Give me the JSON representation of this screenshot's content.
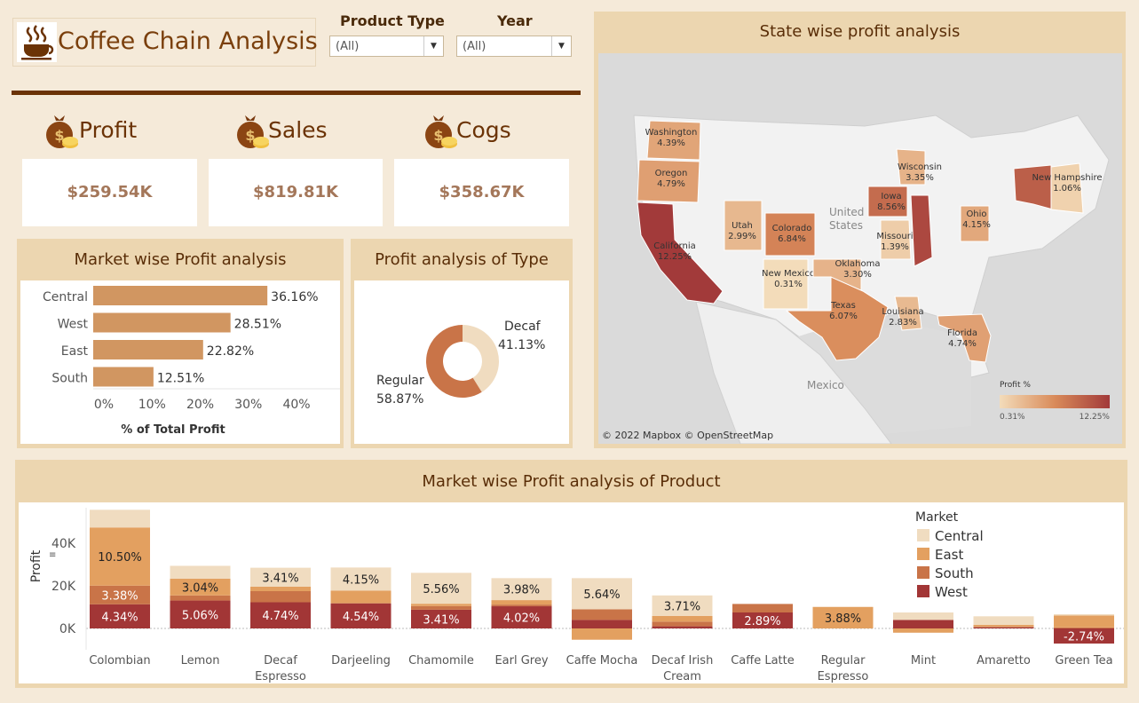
{
  "header": {
    "title": "Coffee Chain Analysis",
    "filters": [
      {
        "label": "Product Type",
        "value": "(All)"
      },
      {
        "label": "Year",
        "value": "(All)"
      }
    ]
  },
  "kpis": [
    {
      "label": "Profit",
      "value": "$259.54K"
    },
    {
      "label": "Sales",
      "value": "$819.81K"
    },
    {
      "label": "Cogs",
      "value": "$358.67K"
    }
  ],
  "colors": {
    "background": "#f5ead9",
    "panel": "#ecd6b0",
    "accent_dark": "#6b3306",
    "central": "#f0dcc0",
    "east": "#e3a060",
    "south": "#c97448",
    "west": "#a23636",
    "bar": "#d19661"
  },
  "chart_data": [
    {
      "id": "market-profit",
      "type": "bar",
      "orientation": "horizontal",
      "title": "Market wise Profit analysis",
      "categories": [
        "Central",
        "West",
        "East",
        "South"
      ],
      "values": [
        36.16,
        28.51,
        22.82,
        12.51
      ],
      "value_labels": [
        "36.16%",
        "28.51%",
        "22.82%",
        "12.51%"
      ],
      "xlabel": "% of Total Profit",
      "xlim": [
        0,
        40
      ],
      "xticks": [
        "0%",
        "10%",
        "20%",
        "30%",
        "40%"
      ]
    },
    {
      "id": "type-profit",
      "type": "pie",
      "title": "Profit analysis of Type",
      "labels": [
        "Decaf",
        "Regular"
      ],
      "values": [
        41.13,
        58.87
      ],
      "value_labels": [
        "41.13%",
        "58.87%"
      ]
    },
    {
      "id": "state-profit",
      "type": "map",
      "title": "State wise profit analysis",
      "states": [
        {
          "name": "Washington",
          "value": "4.39%"
        },
        {
          "name": "Oregon",
          "value": "4.79%"
        },
        {
          "name": "California",
          "value": "12.25%"
        },
        {
          "name": "Utah",
          "value": "2.99%"
        },
        {
          "name": "Colorado",
          "value": "6.84%"
        },
        {
          "name": "New Mexico",
          "value": "0.31%"
        },
        {
          "name": "Oklahoma",
          "value": "3.30%"
        },
        {
          "name": "Texas",
          "value": "6.07%"
        },
        {
          "name": "Louisiana",
          "value": "2.83%"
        },
        {
          "name": "Florida",
          "value": "4.74%"
        },
        {
          "name": "Iowa",
          "value": "8.56%"
        },
        {
          "name": "Missouri",
          "value": "1.39%"
        },
        {
          "name": "Wisconsin",
          "value": "3.35%"
        },
        {
          "name": "Ohio",
          "value": "4.15%"
        },
        {
          "name": "New Hampshire",
          "value": "1.06%"
        }
      ],
      "map_labels": {
        "country": "United States",
        "country_line1": "United",
        "country_line2": "States",
        "mexico": "Mexico"
      },
      "legend": {
        "title": "Profit %",
        "min": "0.31%",
        "max": "12.25%"
      },
      "attribution": "© 2022 Mapbox © OpenStreetMap"
    },
    {
      "id": "product-profit",
      "type": "bar",
      "stacked": true,
      "title": "Market wise Profit analysis of Product",
      "ylabel": "Profit",
      "ylim": [
        -6,
        56
      ],
      "yticks": [
        {
          "v": 0,
          "label": "0K"
        },
        {
          "v": 20,
          "label": "20K"
        },
        {
          "v": 40,
          "label": "40K"
        }
      ],
      "legend": {
        "title": "Market",
        "entries": [
          "Central",
          "East",
          "South",
          "West"
        ]
      },
      "categories": [
        {
          "name": "Colombian",
          "lines": [
            "Colombian"
          ]
        },
        {
          "name": "Lemon",
          "lines": [
            "Lemon"
          ]
        },
        {
          "name": "Decaf Espresso",
          "lines": [
            "Decaf",
            "Espresso"
          ]
        },
        {
          "name": "Darjeeling",
          "lines": [
            "Darjeeling"
          ]
        },
        {
          "name": "Chamomile",
          "lines": [
            "Chamomile"
          ]
        },
        {
          "name": "Earl Grey",
          "lines": [
            "Earl Grey"
          ]
        },
        {
          "name": "Caffe Mocha",
          "lines": [
            "Caffe Mocha"
          ]
        },
        {
          "name": "Decaf Irish Cream",
          "lines": [
            "Decaf Irish",
            "Cream"
          ]
        },
        {
          "name": "Caffe Latte",
          "lines": [
            "Caffe Latte"
          ]
        },
        {
          "name": "Regular Espresso",
          "lines": [
            "Regular",
            "Espresso"
          ]
        },
        {
          "name": "Mint",
          "lines": [
            "Mint"
          ]
        },
        {
          "name": "Amaretto",
          "lines": [
            "Amaretto"
          ]
        },
        {
          "name": "Green Tea",
          "lines": [
            "Green Tea"
          ]
        }
      ],
      "series": [
        {
          "name": "West",
          "values": [
            11.3,
            13.1,
            12.3,
            11.8,
            8.8,
            10.4,
            4.0,
            1.0,
            7.5,
            0,
            4.0,
            0.5,
            -7.1
          ],
          "labels": [
            "4.34%",
            "5.06%",
            "4.74%",
            "4.54%",
            "3.41%",
            "4.02%",
            "",
            "",
            "2.89%",
            "",
            "",
            "",
            "-2.74%"
          ]
        },
        {
          "name": "South",
          "values": [
            8.8,
            2.4,
            5.2,
            0,
            1.7,
            0.8,
            5.0,
            2.2,
            4.0,
            0,
            0,
            0.4,
            0.5
          ],
          "labels": [
            "3.38%",
            "",
            "",
            "",
            "",
            "",
            "",
            "",
            "",
            "",
            "",
            "",
            ""
          ]
        },
        {
          "name": "East",
          "values": [
            27.3,
            7.9,
            2.1,
            6.0,
            1.1,
            2.1,
            -5.3,
            2.7,
            0,
            10.1,
            -2.0,
            0.8,
            5.6
          ],
          "labels": [
            "10.50%",
            "3.04%",
            "",
            "",
            "",
            "",
            "",
            "",
            "",
            "3.88%",
            "",
            "",
            ""
          ]
        },
        {
          "name": "Central",
          "values": [
            8.3,
            6.0,
            8.9,
            10.8,
            14.5,
            10.3,
            14.6,
            9.6,
            0,
            0,
            3.5,
            4.0,
            0.6
          ],
          "labels": [
            "",
            "",
            "3.41%",
            "4.15%",
            "5.56%",
            "3.98%",
            "5.64%",
            "3.71%",
            "",
            "",
            "",
            "",
            ""
          ]
        }
      ]
    }
  ]
}
